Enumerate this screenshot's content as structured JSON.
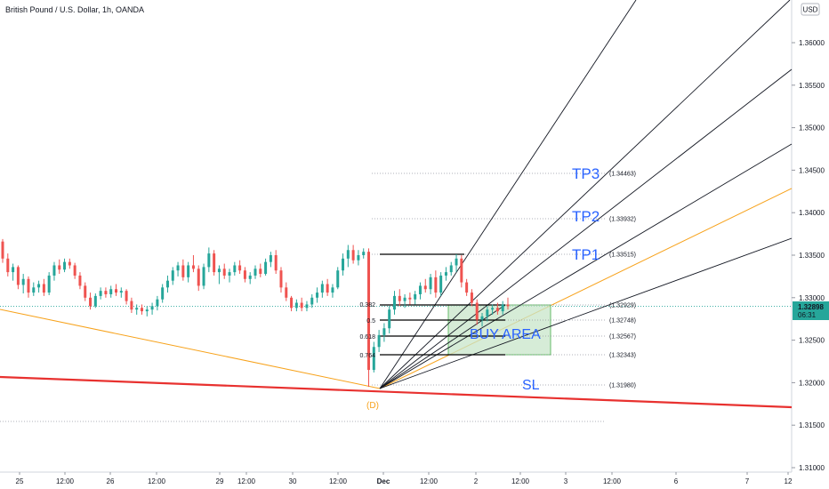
{
  "header": {
    "title": "British Pound / U.S. Dollar, 1h, OANDA",
    "currency_button": "USD"
  },
  "price_tag": {
    "price": "1.32898",
    "countdown": "06:31"
  },
  "annotations": {
    "tp3": "TP3",
    "tp2": "TP2",
    "tp1": "TP1",
    "buy_area": "BUY AREA",
    "sl": "SL",
    "point_d": "(D)"
  },
  "colors": {
    "up": "#26a69a",
    "down": "#ef5350",
    "fan": "#131722",
    "orange": "#f7a21b",
    "thick_red": "#e8312f",
    "buy_area_fill": "#c8e6c9",
    "buy_area_border": "#66bb6a",
    "label_blue": "#2962ff",
    "price_tag_bg": "#26a69a"
  },
  "chart_data": {
    "type": "candlestick",
    "symbol": "British Pound / U.S. Dollar",
    "interval": "1h",
    "broker": "OANDA",
    "current_price": 1.32898,
    "y_axis": {
      "ticks": [
        "1.36000",
        "1.35500",
        "1.35000",
        "1.34500",
        "1.34000",
        "1.33500",
        "1.33000",
        "1.32500",
        "1.32000",
        "1.31500",
        "1.31000"
      ],
      "range": [
        1.309,
        1.3645
      ]
    },
    "x_axis": {
      "ticks": [
        "25",
        "12:00",
        "26",
        "12:00",
        "29",
        "12:00",
        "30",
        "12:00",
        "Dec",
        "12:00",
        "2",
        "12:00",
        "3",
        "12:00",
        "6",
        "7",
        "12"
      ]
    },
    "fib_levels": [
      {
        "ratio": "0.382",
        "price": "(1.32929)",
        "value": 1.32929
      },
      {
        "ratio": "0.5",
        "price": "(1.32748)",
        "value": 1.32748
      },
      {
        "ratio": "0.618",
        "price": "(1.32567)",
        "value": 1.32567
      },
      {
        "ratio": "0.764",
        "price": "(1.32343)",
        "value": 1.32343
      }
    ],
    "targets": [
      {
        "name": "TP3",
        "price": "(1.34463)",
        "value": 1.34463
      },
      {
        "name": "TP2",
        "price": "(1.33932)",
        "value": 1.33932
      },
      {
        "name": "TP1",
        "price": "(1.33515)",
        "value": 1.33515
      },
      {
        "name": "SL",
        "price": "(1.31980)",
        "value": 1.3198
      }
    ],
    "candles": [
      [
        1.3366,
        1.3369,
        1.3341,
        1.3346
      ],
      [
        1.3346,
        1.3352,
        1.3325,
        1.333
      ],
      [
        1.333,
        1.334,
        1.332,
        1.3336
      ],
      [
        1.3336,
        1.3338,
        1.331,
        1.3315
      ],
      [
        1.3315,
        1.3328,
        1.3305,
        1.3322
      ],
      [
        1.3322,
        1.3325,
        1.33,
        1.3306
      ],
      [
        1.3306,
        1.3318,
        1.3302,
        1.3312
      ],
      [
        1.3312,
        1.332,
        1.3306,
        1.3316
      ],
      [
        1.3316,
        1.3322,
        1.3302,
        1.3306
      ],
      [
        1.3306,
        1.333,
        1.3303,
        1.3326
      ],
      [
        1.3326,
        1.3342,
        1.332,
        1.3338
      ],
      [
        1.3338,
        1.3345,
        1.3328,
        1.3333
      ],
      [
        1.3333,
        1.3346,
        1.333,
        1.3342
      ],
      [
        1.3342,
        1.3346,
        1.3334,
        1.3338
      ],
      [
        1.3338,
        1.3341,
        1.3322,
        1.3326
      ],
      [
        1.3326,
        1.333,
        1.331,
        1.3314
      ],
      [
        1.3314,
        1.3318,
        1.3296,
        1.33
      ],
      [
        1.33,
        1.3306,
        1.3286,
        1.329
      ],
      [
        1.329,
        1.3305,
        1.3288,
        1.3302
      ],
      [
        1.3302,
        1.3312,
        1.3298,
        1.3308
      ],
      [
        1.3308,
        1.3312,
        1.33,
        1.3304
      ],
      [
        1.3304,
        1.3314,
        1.33,
        1.331
      ],
      [
        1.331,
        1.3316,
        1.3302,
        1.3306
      ],
      [
        1.3306,
        1.3312,
        1.33,
        1.3308
      ],
      [
        1.3308,
        1.331,
        1.3292,
        1.3296
      ],
      [
        1.3296,
        1.33,
        1.3282,
        1.3286
      ],
      [
        1.3286,
        1.3292,
        1.328,
        1.3288
      ],
      [
        1.3288,
        1.3292,
        1.328,
        1.3284
      ],
      [
        1.3284,
        1.329,
        1.3278,
        1.3286
      ],
      [
        1.3286,
        1.3294,
        1.328,
        1.329
      ],
      [
        1.329,
        1.3302,
        1.3285,
        1.3298
      ],
      [
        1.3298,
        1.3316,
        1.3294,
        1.3312
      ],
      [
        1.3312,
        1.3326,
        1.3306,
        1.332
      ],
      [
        1.332,
        1.3336,
        1.3315,
        1.3332
      ],
      [
        1.3332,
        1.3342,
        1.3325,
        1.3338
      ],
      [
        1.3338,
        1.3345,
        1.332,
        1.3324
      ],
      [
        1.3324,
        1.3342,
        1.3318,
        1.3338
      ],
      [
        1.3338,
        1.335,
        1.333,
        1.3334
      ],
      [
        1.3334,
        1.3338,
        1.3308,
        1.3314
      ],
      [
        1.3314,
        1.334,
        1.331,
        1.3336
      ],
      [
        1.3336,
        1.3359,
        1.333,
        1.3352
      ],
      [
        1.3352,
        1.3356,
        1.3326,
        1.333
      ],
      [
        1.333,
        1.3338,
        1.3316,
        1.3334
      ],
      [
        1.3334,
        1.334,
        1.3322,
        1.3326
      ],
      [
        1.3326,
        1.3334,
        1.3318,
        1.333
      ],
      [
        1.333,
        1.3342,
        1.3326,
        1.3338
      ],
      [
        1.3338,
        1.3344,
        1.3328,
        1.3332
      ],
      [
        1.3332,
        1.3336,
        1.3318,
        1.3322
      ],
      [
        1.3322,
        1.333,
        1.3316,
        1.3326
      ],
      [
        1.3326,
        1.3338,
        1.3322,
        1.3334
      ],
      [
        1.3334,
        1.334,
        1.3324,
        1.3328
      ],
      [
        1.3328,
        1.3346,
        1.3326,
        1.3342
      ],
      [
        1.3342,
        1.3354,
        1.3336,
        1.335
      ],
      [
        1.335,
        1.3356,
        1.3328,
        1.3332
      ],
      [
        1.3332,
        1.3336,
        1.3306,
        1.3312
      ],
      [
        1.3312,
        1.3318,
        1.3296,
        1.33
      ],
      [
        1.33,
        1.3302,
        1.3284,
        1.3288
      ],
      [
        1.3288,
        1.3298,
        1.3284,
        1.3294
      ],
      [
        1.3294,
        1.33,
        1.3284,
        1.3288
      ],
      [
        1.3288,
        1.3296,
        1.3284,
        1.3292
      ],
      [
        1.3292,
        1.3304,
        1.3288,
        1.33
      ],
      [
        1.33,
        1.3312,
        1.3294,
        1.3306
      ],
      [
        1.3306,
        1.332,
        1.33,
        1.3316
      ],
      [
        1.3316,
        1.3322,
        1.3302,
        1.3306
      ],
      [
        1.3306,
        1.3316,
        1.33,
        1.3312
      ],
      [
        1.3312,
        1.3336,
        1.331,
        1.3332
      ],
      [
        1.3332,
        1.3352,
        1.3326,
        1.3346
      ],
      [
        1.3346,
        1.3362,
        1.3336,
        1.3356
      ],
      [
        1.3356,
        1.3362,
        1.334,
        1.3344
      ],
      [
        1.3344,
        1.3356,
        1.3338,
        1.335
      ],
      [
        1.335,
        1.3358,
        1.3346,
        1.3354
      ],
      [
        1.3354,
        1.3358,
        1.3195,
        1.3215
      ],
      [
        1.3215,
        1.3248,
        1.3212,
        1.3242
      ],
      [
        1.3242,
        1.3262,
        1.3236,
        1.3256
      ],
      [
        1.3256,
        1.327,
        1.3248,
        1.3264
      ],
      [
        1.3264,
        1.329,
        1.3258,
        1.3286
      ],
      [
        1.3286,
        1.3308,
        1.328,
        1.3302
      ],
      [
        1.3302,
        1.331,
        1.329,
        1.3296
      ],
      [
        1.3296,
        1.3304,
        1.3288,
        1.33
      ],
      [
        1.33,
        1.3306,
        1.3292,
        1.3298
      ],
      [
        1.3298,
        1.3308,
        1.3292,
        1.3304
      ],
      [
        1.3304,
        1.3318,
        1.3298,
        1.3314
      ],
      [
        1.3314,
        1.3322,
        1.3306,
        1.331
      ],
      [
        1.331,
        1.3328,
        1.3304,
        1.3324
      ],
      [
        1.3324,
        1.3332,
        1.33,
        1.3306
      ],
      [
        1.3306,
        1.333,
        1.3302,
        1.3326
      ],
      [
        1.3326,
        1.3336,
        1.332,
        1.333
      ],
      [
        1.333,
        1.3342,
        1.3326,
        1.3338
      ],
      [
        1.3338,
        1.3351,
        1.333,
        1.3346
      ],
      [
        1.3346,
        1.335,
        1.3312,
        1.3318
      ],
      [
        1.3318,
        1.3322,
        1.3302,
        1.3306
      ],
      [
        1.3306,
        1.331,
        1.329,
        1.3294
      ],
      [
        1.3294,
        1.3298,
        1.3268,
        1.3274
      ],
      [
        1.3274,
        1.3282,
        1.3266,
        1.3278
      ],
      [
        1.3278,
        1.329,
        1.3272,
        1.3286
      ],
      [
        1.3286,
        1.3292,
        1.328,
        1.3288
      ],
      [
        1.3288,
        1.3294,
        1.328,
        1.3284
      ],
      [
        1.3284,
        1.3296,
        1.328,
        1.3292
      ],
      [
        1.3292,
        1.33,
        1.3286,
        1.329
      ]
    ]
  }
}
